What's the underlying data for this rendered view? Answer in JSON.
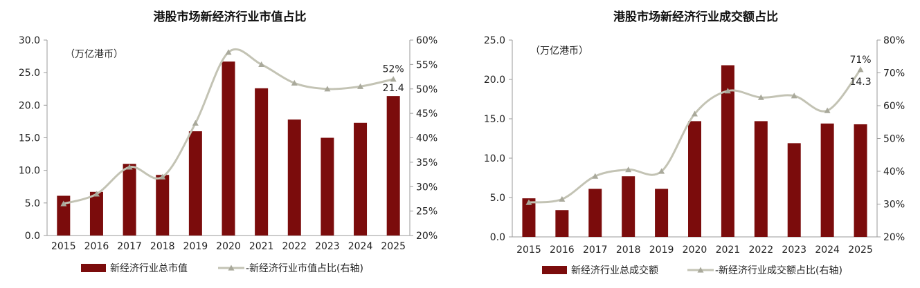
{
  "chart_data": [
    {
      "type": "bar+line",
      "title": "港股市场新经济行业市值占比",
      "unit_note": "（万亿港币）",
      "categories": [
        "2015",
        "2016",
        "2017",
        "2018",
        "2019",
        "2020",
        "2021",
        "2022",
        "2023",
        "2024",
        "2025"
      ],
      "bar_series": {
        "name": "新经济行业总市值",
        "values": [
          6.1,
          6.7,
          11.0,
          9.3,
          16.0,
          26.7,
          22.6,
          17.8,
          15.0,
          17.3,
          21.4
        ],
        "color": "#7b0c0c"
      },
      "line_series": {
        "name": "-新经济行业市值占比(右轴)",
        "values": [
          26.5,
          28.5,
          34.0,
          32.0,
          43.0,
          57.5,
          55.0,
          51.2,
          50.0,
          50.5,
          52.0
        ],
        "color": "#c3c3b4"
      },
      "ylim_left": [
        0,
        30
      ],
      "yticks_left": [
        "0.0",
        "5.0",
        "10.0",
        "15.0",
        "20.0",
        "25.0",
        "30.0"
      ],
      "ylim_right": [
        20,
        60
      ],
      "yticks_right": [
        "20%",
        "25%",
        "30%",
        "35%",
        "40%",
        "45%",
        "50%",
        "55%",
        "60%"
      ],
      "annotations": {
        "bar_last": "21.4",
        "line_last": "52%"
      }
    },
    {
      "type": "bar+line",
      "title": "港股市场新经济行业成交额占比",
      "unit_note": "（万亿港币）",
      "categories": [
        "2015",
        "2016",
        "2017",
        "2018",
        "2019",
        "2020",
        "2021",
        "2022",
        "2023",
        "2024",
        "2025"
      ],
      "bar_series": {
        "name": "新经济行业总成交额",
        "values": [
          4.9,
          3.4,
          6.1,
          7.7,
          6.1,
          14.7,
          21.8,
          14.7,
          11.9,
          14.4,
          14.3
        ],
        "color": "#7b0c0c"
      },
      "line_series": {
        "name": "-新经济行业成交额占比(右轴)",
        "values": [
          30.5,
          31.5,
          38.5,
          40.5,
          40.0,
          57.5,
          64.5,
          62.5,
          63.0,
          58.5,
          71.0
        ],
        "color": "#c3c3b4"
      },
      "ylim_left": [
        0,
        25
      ],
      "yticks_left": [
        "0.0",
        "5.0",
        "10.0",
        "15.0",
        "20.0",
        "25.0"
      ],
      "ylim_right": [
        20,
        80
      ],
      "yticks_right": [
        "20%",
        "30%",
        "40%",
        "50%",
        "60%",
        "70%",
        "80%"
      ],
      "annotations": {
        "bar_last": "14.3",
        "line_last": "71%"
      }
    }
  ]
}
